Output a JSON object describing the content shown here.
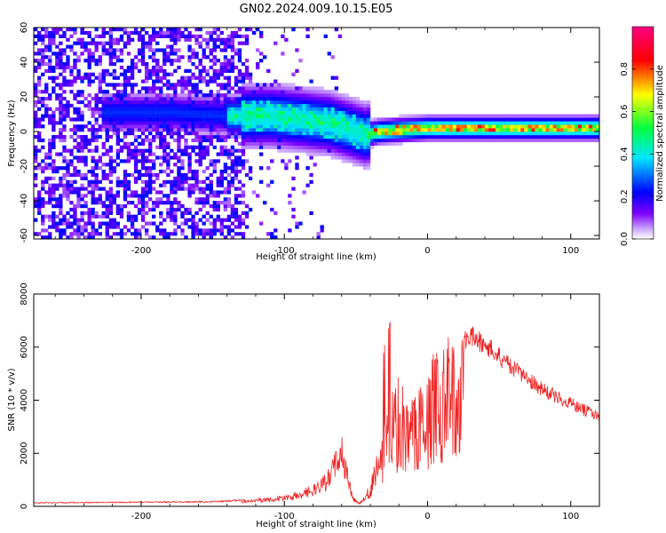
{
  "figure": {
    "title": "GN02.2024.009.10.15.E05"
  },
  "chart_data": [
    {
      "type": "heatmap",
      "xlabel": "Height of straight line (km)",
      "ylabel": "Frequency (Hz)",
      "xlim": [
        -275,
        120
      ],
      "ylim": [
        -62,
        60
      ],
      "x_ticks": [
        -200,
        -100,
        0,
        100
      ],
      "x_tick_labels": [
        "-200",
        "-100",
        "0",
        "100"
      ],
      "y_ticks": [
        -60,
        -40,
        -20,
        0,
        20,
        40,
        60
      ],
      "y_tick_labels": [
        "-60",
        "-40",
        "-20",
        "0",
        "20",
        "40",
        "60"
      ],
      "colorbar": {
        "label": "Normalized spectral amplitude",
        "range": [
          0,
          1
        ],
        "ticks": [
          0,
          0.2,
          0.4,
          0.6,
          0.8
        ],
        "tick_labels": [
          "0.0",
          "0.2",
          "0.4",
          "0.6",
          "0.8"
        ],
        "colormap": [
          "#ffffff",
          "#7c00ff",
          "#0000ff",
          "#00e5ff",
          "#00ff40",
          "#ffff00",
          "#ff0000",
          "#ff0080"
        ]
      },
      "ridge": {
        "x": [
          -275,
          -200,
          -180,
          -140,
          -110,
          -90,
          -70,
          -55,
          -45,
          -35,
          -20,
          0,
          20,
          60,
          90,
          120
        ],
        "y": [
          10,
          10,
          10,
          8,
          8,
          6,
          4,
          0,
          -3,
          -1,
          0,
          1,
          1,
          1,
          1,
          1
        ]
      },
      "grid": false
    },
    {
      "type": "line",
      "xlabel": "Height of straight line (km)",
      "ylabel": "SNR (10 * v/v)",
      "xlim": [
        -275,
        120
      ],
      "ylim": [
        0,
        8000
      ],
      "x_ticks": [
        -200,
        -100,
        0,
        100
      ],
      "x_tick_labels": [
        "-200",
        "-100",
        "0",
        "100"
      ],
      "y_ticks": [
        0,
        2000,
        4000,
        6000,
        8000
      ],
      "y_tick_labels": [
        "0",
        "2000",
        "4000",
        "6000",
        "8000"
      ],
      "series": [
        {
          "color": "#ee2222",
          "x": [
            -275,
            -250,
            -200,
            -150,
            -130,
            -110,
            -95,
            -80,
            -70,
            -65,
            -60,
            -58,
            -55,
            -52,
            -48,
            -45,
            -40,
            -35,
            -30,
            -25,
            -20,
            -15,
            -10,
            -5,
            0,
            5,
            10,
            20,
            30,
            40,
            60,
            80,
            100,
            120
          ],
          "y": [
            150,
            160,
            180,
            200,
            260,
            350,
            500,
            800,
            1300,
            2000,
            3000,
            2000,
            1200,
            400,
            150,
            300,
            900,
            2500,
            3800,
            4500,
            5000,
            4300,
            4000,
            4800,
            5500,
            6000,
            6300,
            6500,
            6800,
            6500,
            5500,
            4700,
            4100,
            3600
          ]
        }
      ],
      "grid": false
    }
  ]
}
